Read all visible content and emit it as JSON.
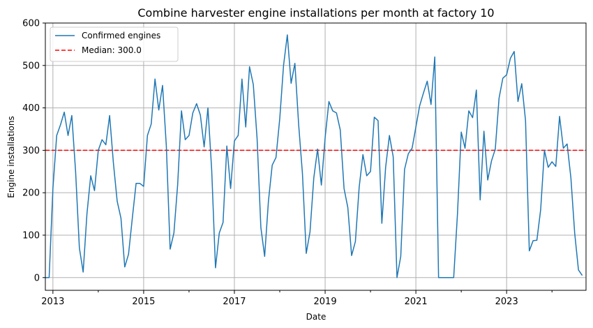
{
  "chart_data": {
    "type": "line",
    "title": "Combine harvester engine installations per month at factory 10",
    "xlabel": "Date",
    "ylabel": "Engine installations",
    "ylim": [
      -30,
      600
    ],
    "xlim": [
      "2012-11",
      "2024-10"
    ],
    "grid": true,
    "legend_position": "upper left",
    "x_ticks": [
      "2013",
      "2015",
      "2017",
      "2019",
      "2021",
      "2023"
    ],
    "y_ticks": [
      0,
      100,
      200,
      300,
      400,
      500,
      600
    ],
    "median_label": "Median: 300.0",
    "median_value": 300.0,
    "colors": {
      "series": "#1f77b4",
      "median": "#ff0000"
    },
    "series": [
      {
        "name": "Confirmed engines",
        "start": "2012-11",
        "frequency": "monthly",
        "values": [
          0,
          0,
          210,
          335,
          360,
          390,
          335,
          382,
          250,
          70,
          13,
          150,
          240,
          205,
          300,
          325,
          313,
          382,
          270,
          180,
          140,
          25,
          55,
          140,
          222,
          222,
          215,
          335,
          362,
          468,
          395,
          453,
          310,
          67,
          105,
          220,
          393,
          325,
          335,
          388,
          410,
          383,
          308,
          400,
          253,
          23,
          105,
          130,
          310,
          210,
          322,
          335,
          468,
          355,
          497,
          455,
          328,
          118,
          50,
          180,
          265,
          283,
          375,
          500,
          572,
          458,
          505,
          360,
          245,
          57,
          108,
          235,
          303,
          218,
          330,
          415,
          393,
          388,
          348,
          210,
          165,
          52,
          85,
          213,
          290,
          240,
          250,
          378,
          370,
          128,
          260,
          335,
          285,
          0,
          50,
          255,
          292,
          305,
          355,
          405,
          435,
          463,
          408,
          520,
          0,
          0,
          0,
          0,
          0,
          150,
          343,
          305,
          393,
          377,
          442,
          183,
          345,
          230,
          275,
          303,
          423,
          470,
          478,
          517,
          533,
          415,
          457,
          370,
          63,
          87,
          88,
          160,
          300,
          260,
          273,
          262,
          380,
          305,
          315,
          235,
          105,
          18,
          5
        ]
      }
    ]
  }
}
